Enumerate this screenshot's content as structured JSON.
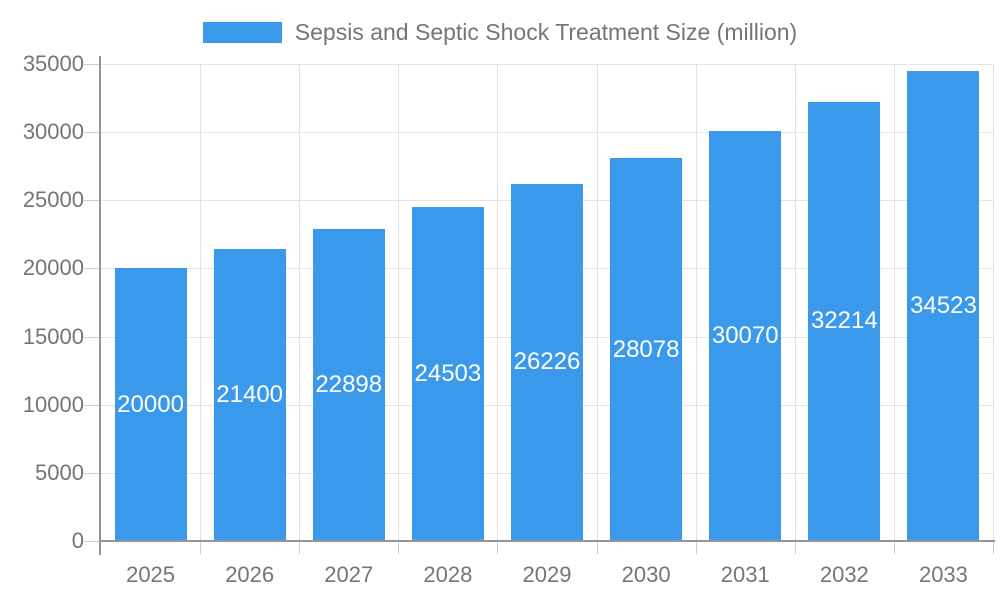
{
  "legend": {
    "label": "Sepsis and Septic Shock Treatment Size (million)"
  },
  "chart_data": {
    "type": "bar",
    "title": "",
    "legend": "Sepsis and Septic Shock Treatment Size (million)",
    "legend_position": "top",
    "categories": [
      "2025",
      "2026",
      "2027",
      "2028",
      "2029",
      "2030",
      "2031",
      "2032",
      "2033"
    ],
    "values": [
      20000,
      21400,
      22898,
      24503,
      26226,
      28078,
      30070,
      32214,
      34523
    ],
    "xlabel": "",
    "ylabel": "",
    "ylim": [
      0,
      35000
    ],
    "yticks": [
      0,
      5000,
      10000,
      15000,
      20000,
      25000,
      30000,
      35000
    ],
    "grid": true
  },
  "colors": {
    "background": "#ffffff",
    "bar": "#3b99ec",
    "bar_label": "#ffffff",
    "text": "#757575",
    "grid": "#e3e3e3",
    "tick": "#cccccc",
    "axis": "#949494"
  }
}
